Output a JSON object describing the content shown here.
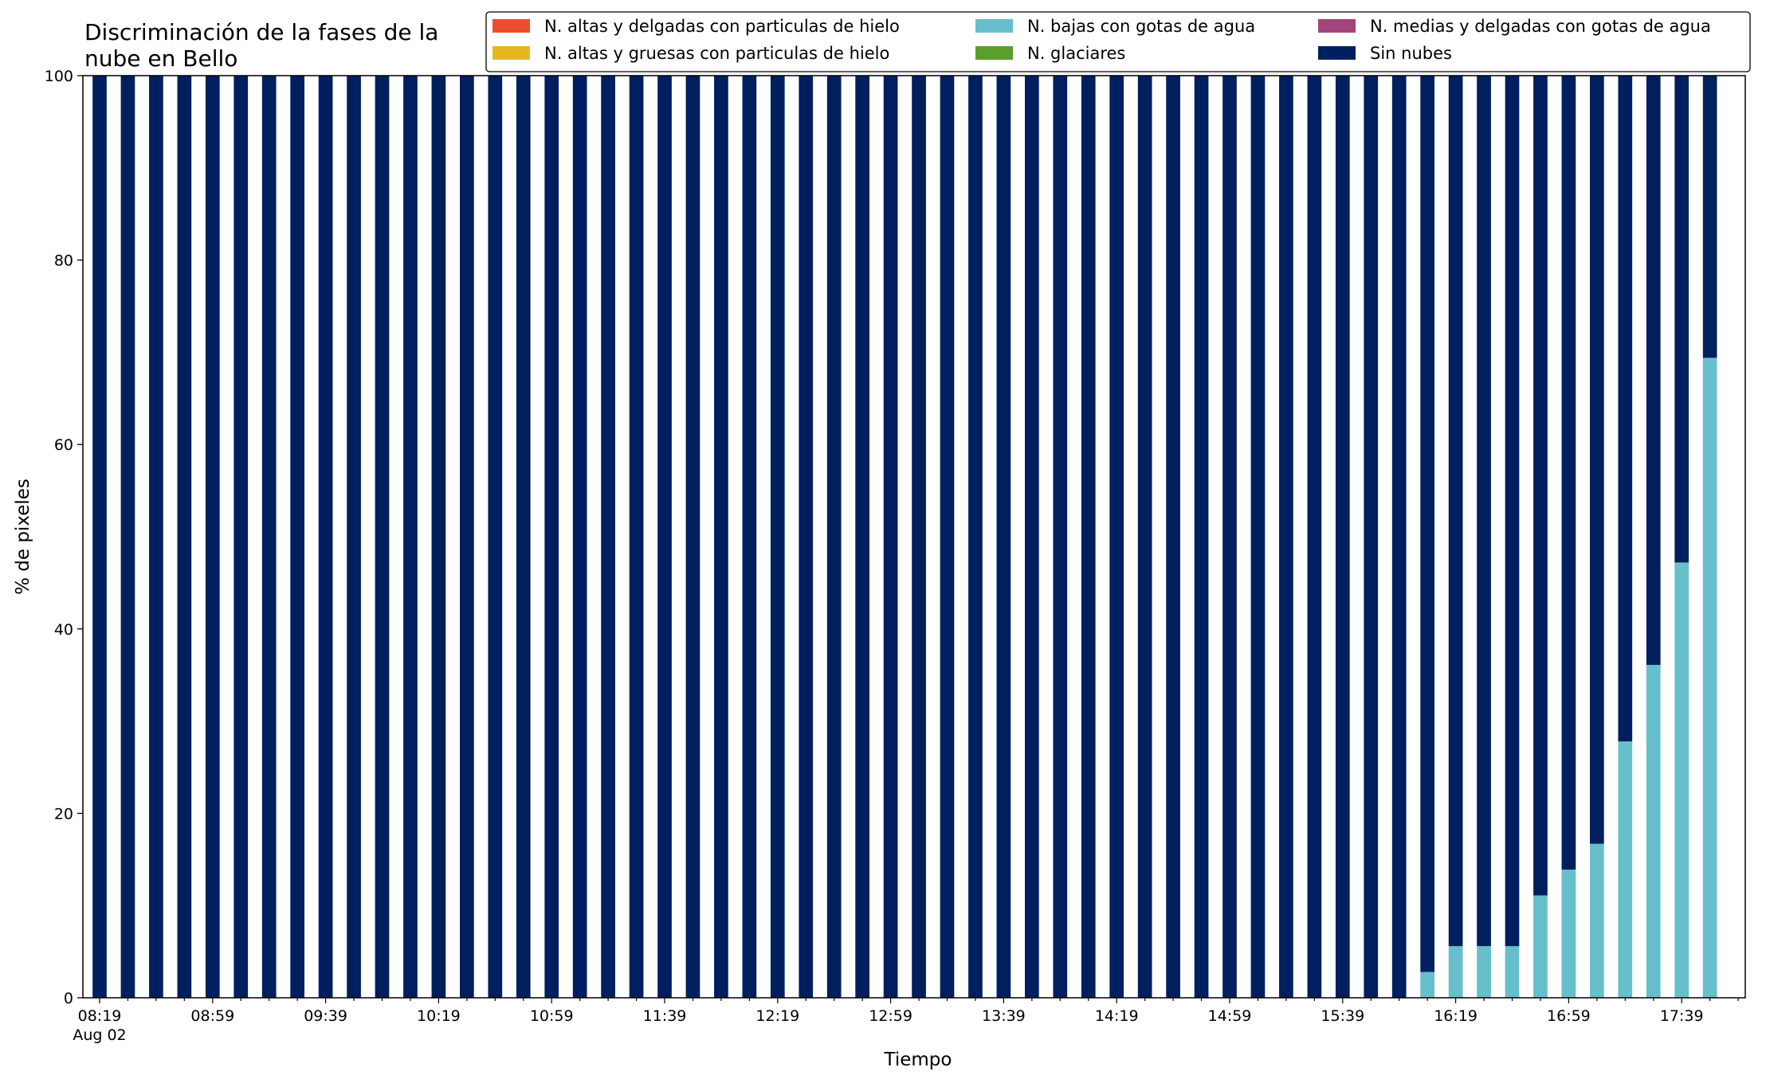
{
  "chart_data": {
    "type": "bar",
    "stacked": true,
    "title": "Discriminación de la fases de la nube en Bello",
    "title_lines": [
      "Discriminación de la fases de la",
      "nube en Bello"
    ],
    "xlabel": "Tiempo",
    "ylabel": "% de pixeles",
    "ylim": [
      0,
      100
    ],
    "yticks": [
      0,
      20,
      40,
      60,
      80,
      100
    ],
    "x_start": "08:19",
    "x_interval_minutes": 10,
    "x_tick_labels": [
      "08:19",
      "08:59",
      "09:39",
      "10:19",
      "10:59",
      "11:39",
      "12:19",
      "12:59",
      "13:39",
      "14:19",
      "14:59",
      "15:39",
      "16:19",
      "16:59",
      "17:39"
    ],
    "x_date_label": "Aug 02",
    "legend_position": "top-right",
    "legend_columns": 3,
    "series": [
      {
        "name": "N. altas y delgadas con particulas de hielo",
        "color": "#ee4d2d",
        "values": [
          0,
          0,
          0,
          0,
          0,
          0,
          0,
          0,
          0,
          0,
          0,
          0,
          0,
          0,
          0,
          0,
          0,
          0,
          0,
          0,
          0,
          0,
          0,
          0,
          0,
          0,
          0,
          0,
          0,
          0,
          0,
          0,
          0,
          0,
          0,
          0,
          0,
          0,
          0,
          0,
          0,
          0,
          0,
          0,
          0,
          0,
          0,
          0,
          0,
          0,
          0,
          0,
          0,
          0,
          0,
          0,
          0,
          0,
          0
        ]
      },
      {
        "name": "N. altas y gruesas con particulas de hielo",
        "color": "#e6b81e",
        "values": [
          0,
          0,
          0,
          0,
          0,
          0,
          0,
          0,
          0,
          0,
          0,
          0,
          0,
          0,
          0,
          0,
          0,
          0,
          0,
          0,
          0,
          0,
          0,
          0,
          0,
          0,
          0,
          0,
          0,
          0,
          0,
          0,
          0,
          0,
          0,
          0,
          0,
          0,
          0,
          0,
          0,
          0,
          0,
          0,
          0,
          0,
          0,
          0,
          0,
          0,
          0,
          0,
          0,
          0,
          0,
          0,
          0,
          0,
          0
        ]
      },
      {
        "name": "N. bajas con gotas de agua",
        "color": "#66bfca",
        "values": [
          0,
          0,
          0,
          0,
          0,
          0,
          0,
          0,
          0,
          0,
          0,
          0,
          0,
          0,
          0,
          0,
          0,
          0,
          0,
          0,
          0,
          0,
          0,
          0,
          0,
          0,
          0,
          0,
          0,
          0,
          0,
          0,
          0,
          0,
          0,
          0,
          0,
          0,
          0,
          0,
          0,
          0,
          0,
          0,
          0,
          0,
          0,
          2.8,
          5.6,
          5.6,
          5.6,
          11.1,
          13.9,
          16.7,
          27.8,
          36.1,
          47.2,
          69.4
        ]
      },
      {
        "name": "N. glaciares",
        "color": "#5c9e2d",
        "values": [
          0,
          0,
          0,
          0,
          0,
          0,
          0,
          0,
          0,
          0,
          0,
          0,
          0,
          0,
          0,
          0,
          0,
          0,
          0,
          0,
          0,
          0,
          0,
          0,
          0,
          0,
          0,
          0,
          0,
          0,
          0,
          0,
          0,
          0,
          0,
          0,
          0,
          0,
          0,
          0,
          0,
          0,
          0,
          0,
          0,
          0,
          0,
          0,
          0,
          0,
          0,
          0,
          0,
          0,
          0,
          0,
          0,
          0,
          0
        ]
      },
      {
        "name": "N. medias y delgadas con gotas de agua",
        "color": "#a4457a",
        "values": [
          0,
          0,
          0,
          0,
          0,
          0,
          0,
          0,
          0,
          0,
          0,
          0,
          0,
          0,
          0,
          0,
          0,
          0,
          0,
          0,
          0,
          0,
          0,
          0,
          0,
          0,
          0,
          0,
          0,
          0,
          0,
          0,
          0,
          0,
          0,
          0,
          0,
          0,
          0,
          0,
          0,
          0,
          0,
          0,
          0,
          0,
          0,
          0,
          0,
          0,
          0,
          0,
          0,
          0,
          0,
          0,
          0,
          0,
          0
        ]
      },
      {
        "name": "Sin nubes",
        "color": "#001f5e",
        "values": [
          100,
          100,
          100,
          100,
          100,
          100,
          100,
          100,
          100,
          100,
          100,
          100,
          100,
          100,
          100,
          100,
          100,
          100,
          100,
          100,
          100,
          100,
          100,
          100,
          100,
          100,
          100,
          100,
          100,
          100,
          100,
          100,
          100,
          100,
          100,
          100,
          100,
          100,
          100,
          100,
          100,
          100,
          100,
          100,
          100,
          100,
          100,
          97.2,
          94.4,
          94.4,
          94.4,
          88.9,
          86.1,
          83.3,
          72.2,
          63.9,
          52.8,
          30.6
        ]
      }
    ]
  }
}
